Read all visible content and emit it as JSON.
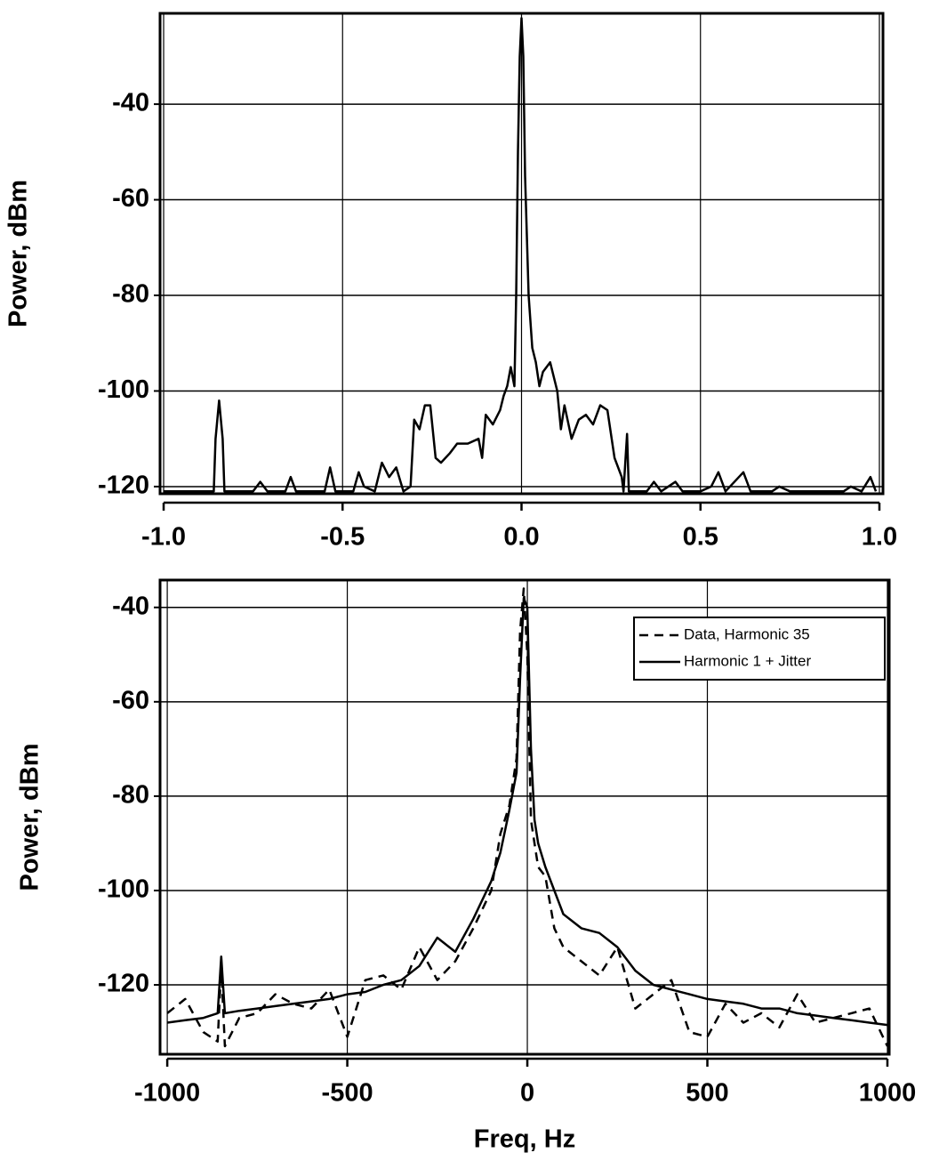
{
  "chart_data": [
    {
      "type": "line",
      "ylabel": "Power, dBm",
      "x": [
        -1.0,
        -0.86,
        -0.855,
        -0.845,
        -0.835,
        -0.83,
        -0.75,
        -0.73,
        -0.71,
        -0.66,
        -0.645,
        -0.63,
        -0.55,
        -0.535,
        -0.52,
        -0.47,
        -0.455,
        -0.44,
        -0.41,
        -0.39,
        -0.37,
        -0.35,
        -0.33,
        -0.31,
        -0.3,
        -0.285,
        -0.27,
        -0.255,
        -0.24,
        -0.225,
        -0.2,
        -0.18,
        -0.15,
        -0.12,
        -0.11,
        -0.1,
        -0.08,
        -0.06,
        -0.05,
        -0.04,
        -0.03,
        -0.02,
        -0.015,
        -0.01,
        -0.005,
        0.0,
        0.005,
        0.01,
        0.02,
        0.03,
        0.04,
        0.05,
        0.06,
        0.08,
        0.1,
        0.11,
        0.12,
        0.14,
        0.16,
        0.18,
        0.2,
        0.22,
        0.24,
        0.26,
        0.28,
        0.285,
        0.295,
        0.3,
        0.35,
        0.37,
        0.39,
        0.43,
        0.45,
        0.5,
        0.53,
        0.55,
        0.57,
        0.62,
        0.64,
        0.7,
        0.72,
        0.75,
        0.9,
        0.92,
        0.95,
        0.975,
        0.99
      ],
      "values": [
        -121,
        -121,
        -110,
        -102,
        -110,
        -121,
        -121,
        -119,
        -121,
        -121,
        -118,
        -121,
        -121,
        -116,
        -121,
        -121,
        -117,
        -120,
        -121,
        -115,
        -118,
        -116,
        -121,
        -120,
        -106,
        -108,
        -103,
        -103,
        -114,
        -115,
        -113,
        -111,
        -111,
        -110,
        -114,
        -105,
        -107,
        -104,
        -101,
        -99,
        -95,
        -99,
        -80,
        -50,
        -30,
        -22,
        -30,
        -55,
        -80,
        -91,
        -94,
        -99,
        -96,
        -94,
        -100,
        -108,
        -103,
        -110,
        -106,
        -105,
        -107,
        -103,
        -104,
        -114,
        -118,
        -121,
        -109,
        -121,
        -121,
        -119,
        -121,
        -119,
        -121,
        -121,
        -120,
        -117,
        -121,
        -117,
        -121,
        -121,
        -120,
        -121,
        -121,
        -120,
        -121,
        -118,
        -121
      ],
      "color": "#000000",
      "xlim": [
        -1.01,
        1.01
      ],
      "ylim": [
        -121.5,
        -21
      ],
      "xticks": [
        {
          "value": -1.0,
          "label": "-1.0"
        },
        -0.5,
        {
          "value": 0,
          "label": "0.0"
        },
        0.5,
        {
          "value": 1.0,
          "label": "1.0"
        }
      ],
      "yticks": [
        -40,
        -60,
        -80,
        -100,
        -120
      ],
      "grid": true
    },
    {
      "type": "line",
      "xlabel": "Freq, Hz",
      "ylabel": "Power, dBm",
      "x": [
        -1000,
        -950,
        -900,
        -860,
        -850,
        -840,
        -800,
        -750,
        -700,
        -650,
        -600,
        -550,
        -500,
        -450,
        -400,
        -350,
        -300,
        -250,
        -200,
        -150,
        -100,
        -75,
        -50,
        -30,
        -20,
        -10,
        0,
        10,
        20,
        30,
        50,
        75,
        100,
        150,
        200,
        250,
        300,
        350,
        400,
        450,
        500,
        550,
        600,
        650,
        700,
        750,
        800,
        850,
        900,
        950,
        1000
      ],
      "series": [
        {
          "name": "Data, Harmonic 35",
          "color": "#000000",
          "linestyle": "dashed",
          "values": [
            -126,
            -123,
            -130,
            -132,
            -116,
            -133,
            -127,
            -126,
            -122,
            -124,
            -125,
            -121,
            -131,
            -119,
            -118,
            -121,
            -112,
            -119,
            -115,
            -108,
            -100,
            -88,
            -82,
            -72,
            -45,
            -36,
            -50,
            -85,
            -90,
            -95,
            -97,
            -108,
            -112,
            -115,
            -118,
            -112,
            -125,
            -122,
            -119,
            -130,
            -131,
            -124,
            -128,
            -126,
            -129,
            -122,
            -128,
            -127,
            -126,
            -125,
            -133
          ]
        },
        {
          "name": "Harmonic 1 + Jitter",
          "color": "#000000",
          "linestyle": "solid",
          "values": [
            -128,
            -127.5,
            -127,
            -126,
            -114,
            -126,
            -125.5,
            -125,
            -124.5,
            -124,
            -123.5,
            -123,
            -122,
            -121.5,
            -120,
            -119,
            -116,
            -110,
            -113,
            -106,
            -98,
            -92,
            -83,
            -75,
            -55,
            -38,
            -40,
            -70,
            -85,
            -90,
            -95,
            -100,
            -105,
            -108,
            -109,
            -112,
            -117,
            -120,
            -121,
            -122,
            -123,
            -123.5,
            -124,
            -125,
            -125,
            -126,
            -126.5,
            -127,
            -127.5,
            -128,
            -128.5
          ]
        }
      ],
      "xlim": [
        -1020,
        1005
      ],
      "ylim": [
        -134.7,
        -34.2
      ],
      "xticks": [
        -1000,
        -500,
        0,
        500,
        1000
      ],
      "yticks": [
        -40,
        -60,
        -80,
        -100,
        -120
      ],
      "grid": true,
      "legend": "upper right"
    }
  ]
}
